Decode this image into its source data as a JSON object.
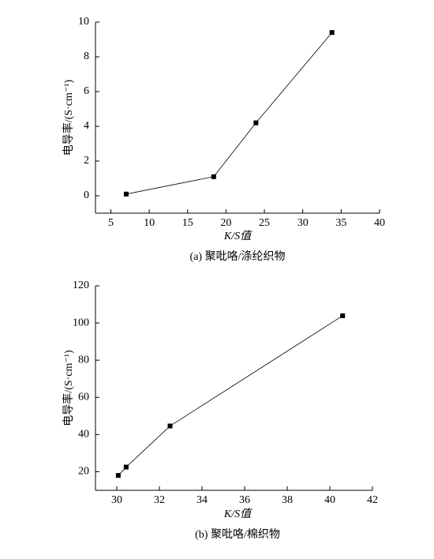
{
  "chart_data": [
    {
      "type": "line",
      "caption": "(a) 聚吡咯/涤纶织物",
      "x_label": "K/S值",
      "y_label": "电导率/(S·cm⁻¹)",
      "x": [
        7.0,
        18.4,
        23.9,
        33.8
      ],
      "values": [
        0.1,
        1.1,
        4.2,
        9.4
      ],
      "color": "#000000",
      "marker": "square",
      "xlim": [
        3,
        40
      ],
      "ylim": [
        -1,
        10
      ],
      "xticks": [
        5,
        10,
        15,
        20,
        25,
        30,
        35,
        40
      ],
      "yticks": [
        0,
        2,
        4,
        6,
        8,
        10
      ]
    },
    {
      "type": "line",
      "caption": "(b) 聚吡咯/棉织物",
      "x_label": "K/S值",
      "y_label": "电导率/(S·cm⁻¹)",
      "x": [
        30.07,
        30.44,
        32.5,
        40.6
      ],
      "values": [
        18,
        22.5,
        44.6,
        103.9
      ],
      "color": "#000000",
      "marker": "square",
      "xlim": [
        29,
        42
      ],
      "ylim": [
        10,
        120
      ],
      "xticks": [
        30,
        32,
        34,
        36,
        38,
        40,
        42
      ],
      "yticks": [
        20,
        40,
        60,
        80,
        100,
        120
      ]
    }
  ]
}
